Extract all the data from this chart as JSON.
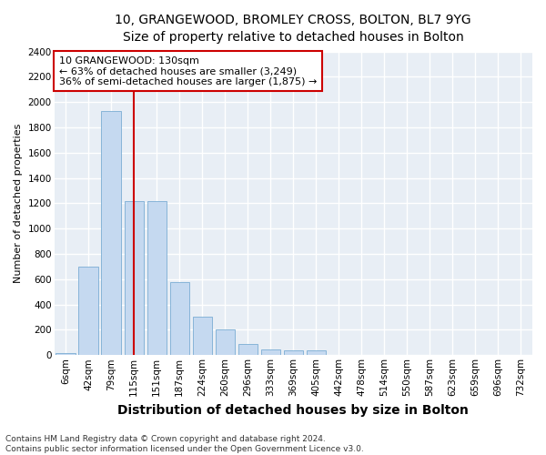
{
  "title": "10, GRANGEWOOD, BROMLEY CROSS, BOLTON, BL7 9YG",
  "subtitle": "Size of property relative to detached houses in Bolton",
  "xlabel": "Distribution of detached houses by size in Bolton",
  "ylabel": "Number of detached properties",
  "categories": [
    "6sqm",
    "42sqm",
    "79sqm",
    "115sqm",
    "151sqm",
    "187sqm",
    "224sqm",
    "260sqm",
    "296sqm",
    "333sqm",
    "369sqm",
    "405sqm",
    "442sqm",
    "478sqm",
    "514sqm",
    "550sqm",
    "587sqm",
    "623sqm",
    "659sqm",
    "696sqm",
    "732sqm"
  ],
  "values": [
    15,
    700,
    1930,
    1220,
    1220,
    575,
    305,
    200,
    85,
    45,
    40,
    35,
    5,
    5,
    5,
    5,
    5,
    5,
    5,
    5,
    5
  ],
  "bar_color": "#c5d9f0",
  "bar_edge_color": "#7aadd4",
  "vline_x_index": 3,
  "vline_color": "#cc0000",
  "annotation_line1": "10 GRANGEWOOD: 130sqm",
  "annotation_line2": "← 63% of detached houses are smaller (3,249)",
  "annotation_line3": "36% of semi-detached houses are larger (1,875) →",
  "annotation_box_color": "#ffffff",
  "annotation_box_edge": "#cc0000",
  "ylim": [
    0,
    2400
  ],
  "yticks": [
    0,
    200,
    400,
    600,
    800,
    1000,
    1200,
    1400,
    1600,
    1800,
    2000,
    2200,
    2400
  ],
  "footer_line1": "Contains HM Land Registry data © Crown copyright and database right 2024.",
  "footer_line2": "Contains public sector information licensed under the Open Government Licence v3.0.",
  "fig_bg_color": "#ffffff",
  "axes_bg_color": "#e8eef5",
  "grid_color": "#ffffff",
  "title_fontsize": 10,
  "subtitle_fontsize": 9,
  "xlabel_fontsize": 10,
  "ylabel_fontsize": 8,
  "tick_fontsize": 7.5,
  "annotation_fontsize": 8,
  "footer_fontsize": 6.5
}
